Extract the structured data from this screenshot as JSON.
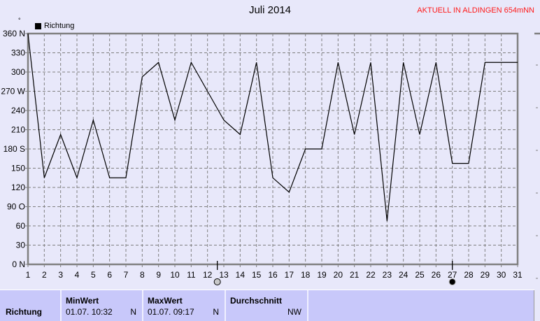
{
  "header": {
    "title": "Juli 2014",
    "status": "AKTUELL IN ALDINGEN 654mNN",
    "unit_symbol": "°"
  },
  "chart_data": {
    "type": "line",
    "title": "Juli 2014",
    "x": [
      1,
      2,
      3,
      4,
      5,
      6,
      7,
      8,
      9,
      10,
      11,
      12,
      13,
      14,
      15,
      16,
      17,
      18,
      19,
      20,
      21,
      22,
      23,
      24,
      25,
      26,
      27,
      28,
      29,
      30,
      31
    ],
    "series": [
      {
        "name": "Richtung",
        "color": "#000000",
        "values": [
          360,
          135,
          202.5,
          135,
          225,
          135,
          135,
          292.5,
          315,
          225,
          315,
          270,
          225,
          202.5,
          315,
          135,
          112.5,
          180,
          180,
          315,
          202.5,
          315,
          67.5,
          315,
          202.5,
          315,
          157.5,
          157.5,
          315,
          315,
          315
        ]
      }
    ],
    "xlim": [
      1,
      31
    ],
    "ylim": [
      0,
      360
    ],
    "yticks": [
      0,
      30,
      60,
      90,
      120,
      150,
      180,
      210,
      240,
      270,
      300,
      330,
      360
    ],
    "ytick_labels": [
      "0   N",
      "30",
      "60",
      "90  O",
      "120",
      "150",
      "180 S",
      "210",
      "240",
      "270 W",
      "300",
      "330",
      "360 N"
    ],
    "xtick_labels": [
      "1",
      "2",
      "3",
      "4",
      "5",
      "6",
      "7",
      "8",
      "9",
      "10",
      "11",
      "12",
      "13",
      "14",
      "15",
      "16",
      "17",
      "18",
      "19",
      "20",
      "21",
      "22",
      "23",
      "24",
      "25",
      "26",
      "27",
      "28",
      "29",
      "30",
      "31"
    ],
    "grid": true,
    "legend": "top-left",
    "moon_phases": [
      {
        "day": 12.6,
        "phase": "full-moon"
      },
      {
        "day": 27,
        "phase": "new-moon"
      }
    ]
  },
  "table": {
    "row_label": "Richtung",
    "columns": [
      {
        "header": "MinWert",
        "date": "01.07.  10:32",
        "value": "N"
      },
      {
        "header": "MaxWert",
        "date": "01.07.  09:17",
        "value": "N"
      },
      {
        "header": "Durchschnitt",
        "date": "",
        "value": "NW"
      }
    ]
  }
}
